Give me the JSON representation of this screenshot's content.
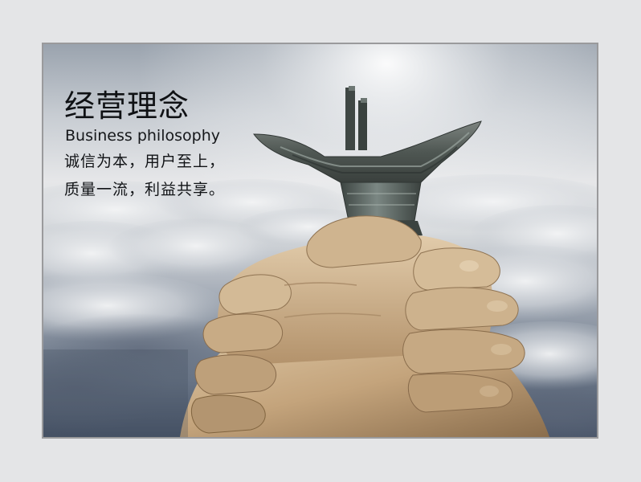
{
  "poster": {
    "title_cn": "经营理念",
    "title_en": "Business philosophy",
    "slogan_line_1": "诚信为本，用户至上，",
    "slogan_line_2": "质量一流，利益共享。"
  },
  "imagery": {
    "subject": "clasped-hands-holding-bronze-jue-vessel",
    "background": "sky-above-clouds"
  },
  "colors": {
    "page_background": "#e4e5e7",
    "frame_border": "#9a9a9c",
    "text": "#111316",
    "bronze": "#5e6663",
    "skin": "#c9ad88"
  }
}
